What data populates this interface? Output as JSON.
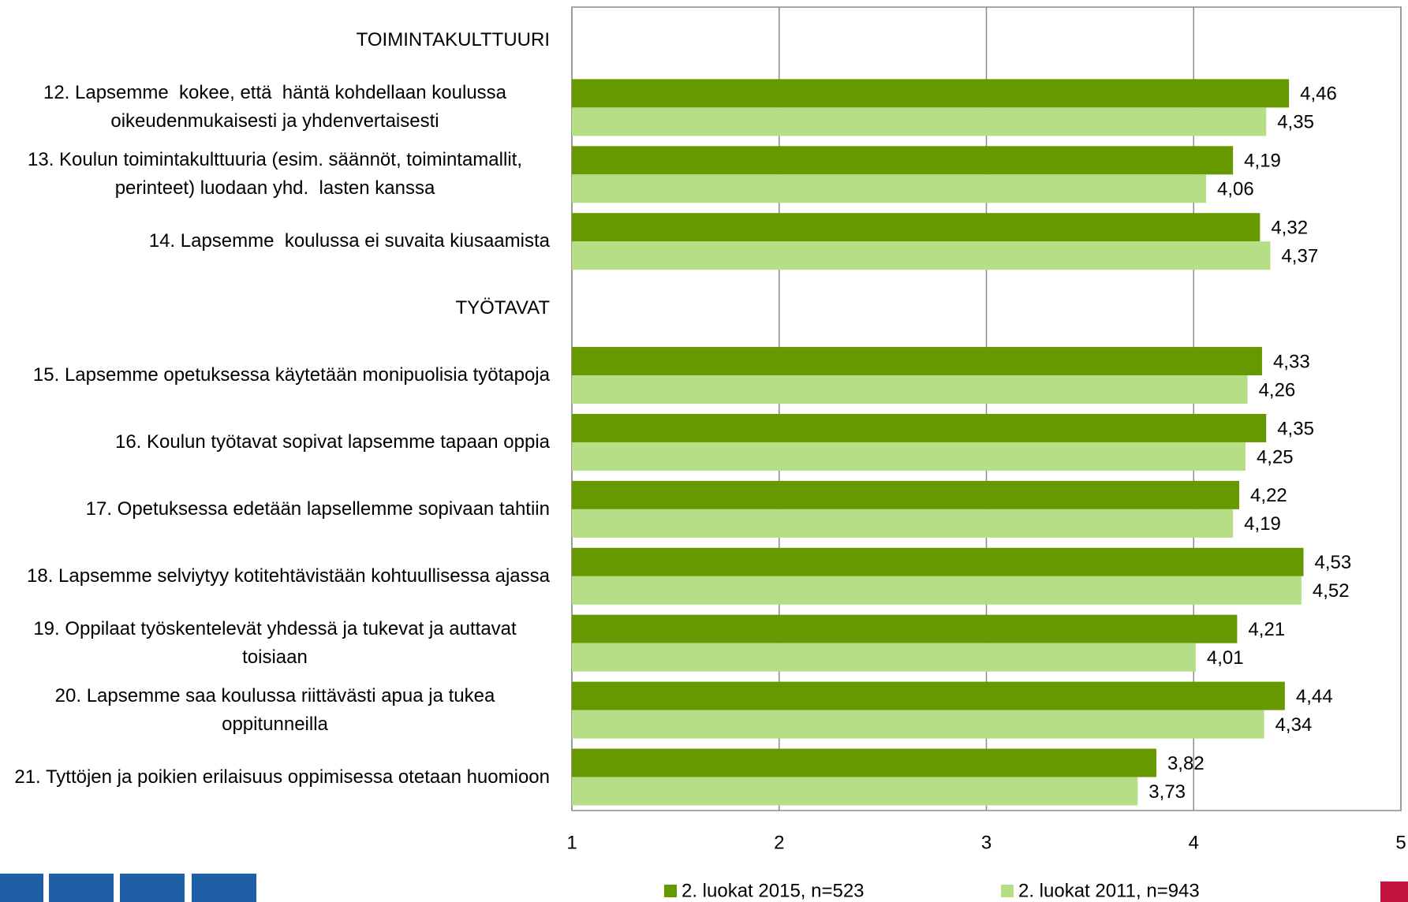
{
  "chart_data": {
    "type": "hbar",
    "categories": [
      "TOIMINTAKULTTUURI",
      "12. Lapsemme  kokee, että  häntä kohdellaan koulussa oikeudenmukaisesti ja yhdenvertaisesti",
      "13. Koulun toimintakulttuuria (esim. säännöt, toimintamallit, perinteet) luodaan yhd.  lasten kanssa",
      "14. Lapsemme  koulussa ei suvaita kiusaamista",
      "TYÖTAVAT",
      "15. Lapsemme opetuksessa käytetään monipuolisia työtapoja",
      "16. Koulun työtavat sopivat lapsemme tapaan oppia",
      "17. Opetuksessa edetään lapsellemme sopivaan tahtiin",
      "18. Lapsemme selviytyy kotitehtävistään kohtuullisessa ajassa",
      "19. Oppilaat työskentelevät yhdessä ja tukevat ja auttavat toisiaan",
      "20. Lapsemme saa koulussa riittävästi apua ja tukea oppitunneilla",
      "21. Tyttöjen ja poikien erilaisuus oppimisessa otetaan huomioon"
    ],
    "series": [
      {
        "name": "2. luokat 2015, n=523",
        "color": "#669900",
        "values": [
          null,
          4.46,
          4.19,
          4.32,
          null,
          4.33,
          4.35,
          4.22,
          4.53,
          4.21,
          4.44,
          3.82
        ],
        "value_labels": [
          null,
          "4,46",
          "4,19",
          "4,32",
          null,
          "4,33",
          "4,35",
          "4,22",
          "4,53",
          "4,21",
          "4,44",
          "3,82"
        ]
      },
      {
        "name": "2. luokat 2011, n=943",
        "color": "#b5de87",
        "values": [
          null,
          4.35,
          4.06,
          4.37,
          null,
          4.26,
          4.25,
          4.19,
          4.52,
          4.01,
          4.34,
          3.73
        ],
        "value_labels": [
          null,
          "4,35",
          "4,06",
          "4,37",
          null,
          "4,26",
          "4,25",
          "4,19",
          "4,52",
          "4,01",
          "4,34",
          "3,73"
        ]
      }
    ],
    "xlim": [
      1,
      5
    ],
    "xticks": [
      1,
      2,
      3,
      4,
      5
    ],
    "grid": true,
    "legend": "bottom"
  }
}
